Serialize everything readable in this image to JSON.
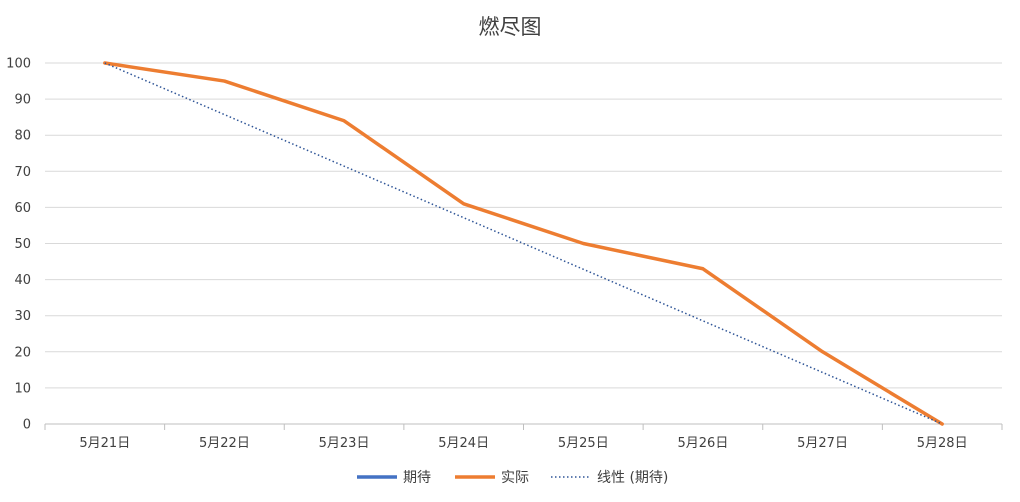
{
  "chart_data": {
    "type": "line",
    "title": "燃尽图",
    "categories": [
      "5月21日",
      "5月22日",
      "5月23日",
      "5月24日",
      "5月25日",
      "5月26日",
      "5月27日",
      "5月28日"
    ],
    "ylim": [
      0,
      100
    ],
    "yticks": [
      0,
      10,
      20,
      30,
      40,
      50,
      60,
      70,
      80,
      90,
      100
    ],
    "grid": true,
    "legend_position": "bottom",
    "series": [
      {
        "name": "期待",
        "values": [
          100,
          85.7,
          71.4,
          57.1,
          42.9,
          28.6,
          14.3,
          0
        ],
        "color": "#4472C4",
        "style": "hidden-under-trendline"
      },
      {
        "name": "实际",
        "values": [
          100,
          95,
          84,
          61,
          50,
          43,
          20,
          0
        ],
        "color": "#ED7D31",
        "style": "solid"
      }
    ],
    "trendline": {
      "name": "线性 (期待)",
      "of_series": "期待",
      "values": [
        100,
        0
      ],
      "color": "#2F5597",
      "style": "dotted"
    }
  }
}
